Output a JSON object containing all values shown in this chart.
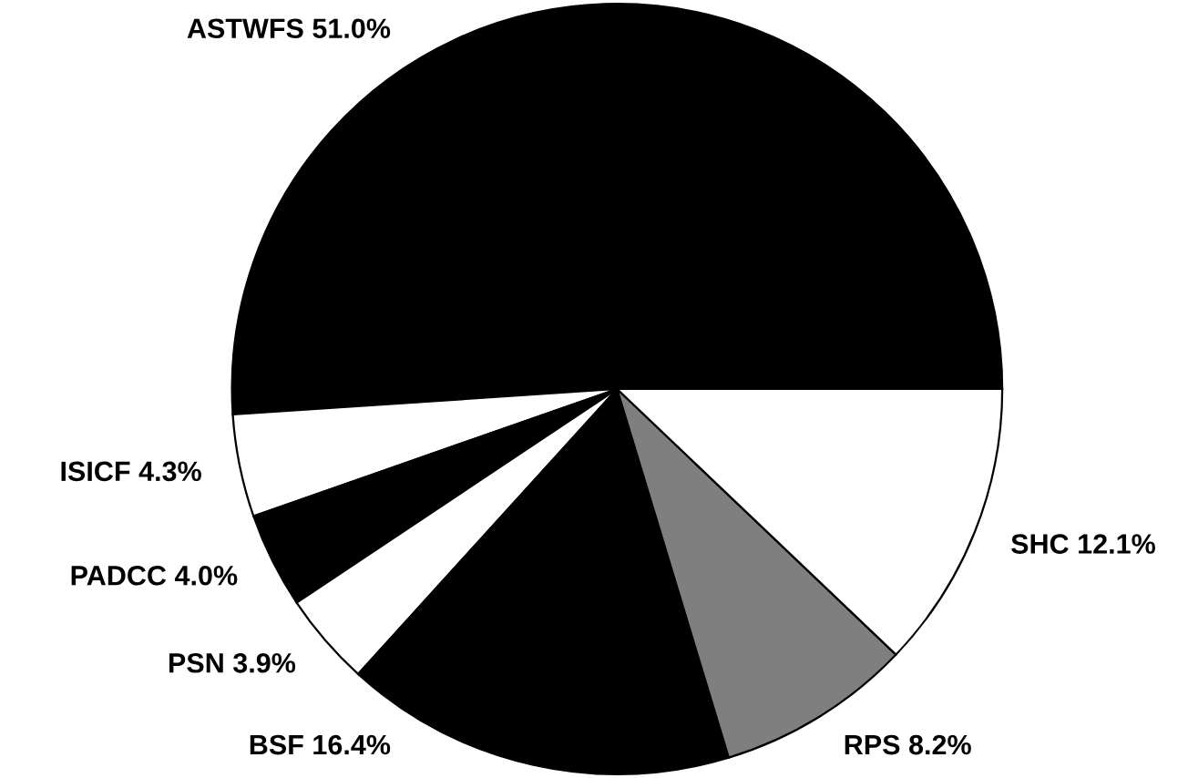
{
  "chart_data": {
    "type": "pie",
    "categories": [
      "ASTWFS",
      "ISICF",
      "PADCC",
      "PSN",
      "BSF",
      "RPS",
      "SHC"
    ],
    "values": [
      51.0,
      4.3,
      4.0,
      3.9,
      16.4,
      8.2,
      12.1
    ],
    "colors": [
      "#000000",
      "#ffffff",
      "#000000",
      "#ffffff",
      "#000000",
      "#7f7f7f",
      "#ffffff"
    ],
    "value_labels": [
      "51.0%",
      "4.3%",
      "4.0%",
      "3.9%",
      "16.4%",
      "8.2%",
      "12.1%"
    ],
    "legend": false
  }
}
